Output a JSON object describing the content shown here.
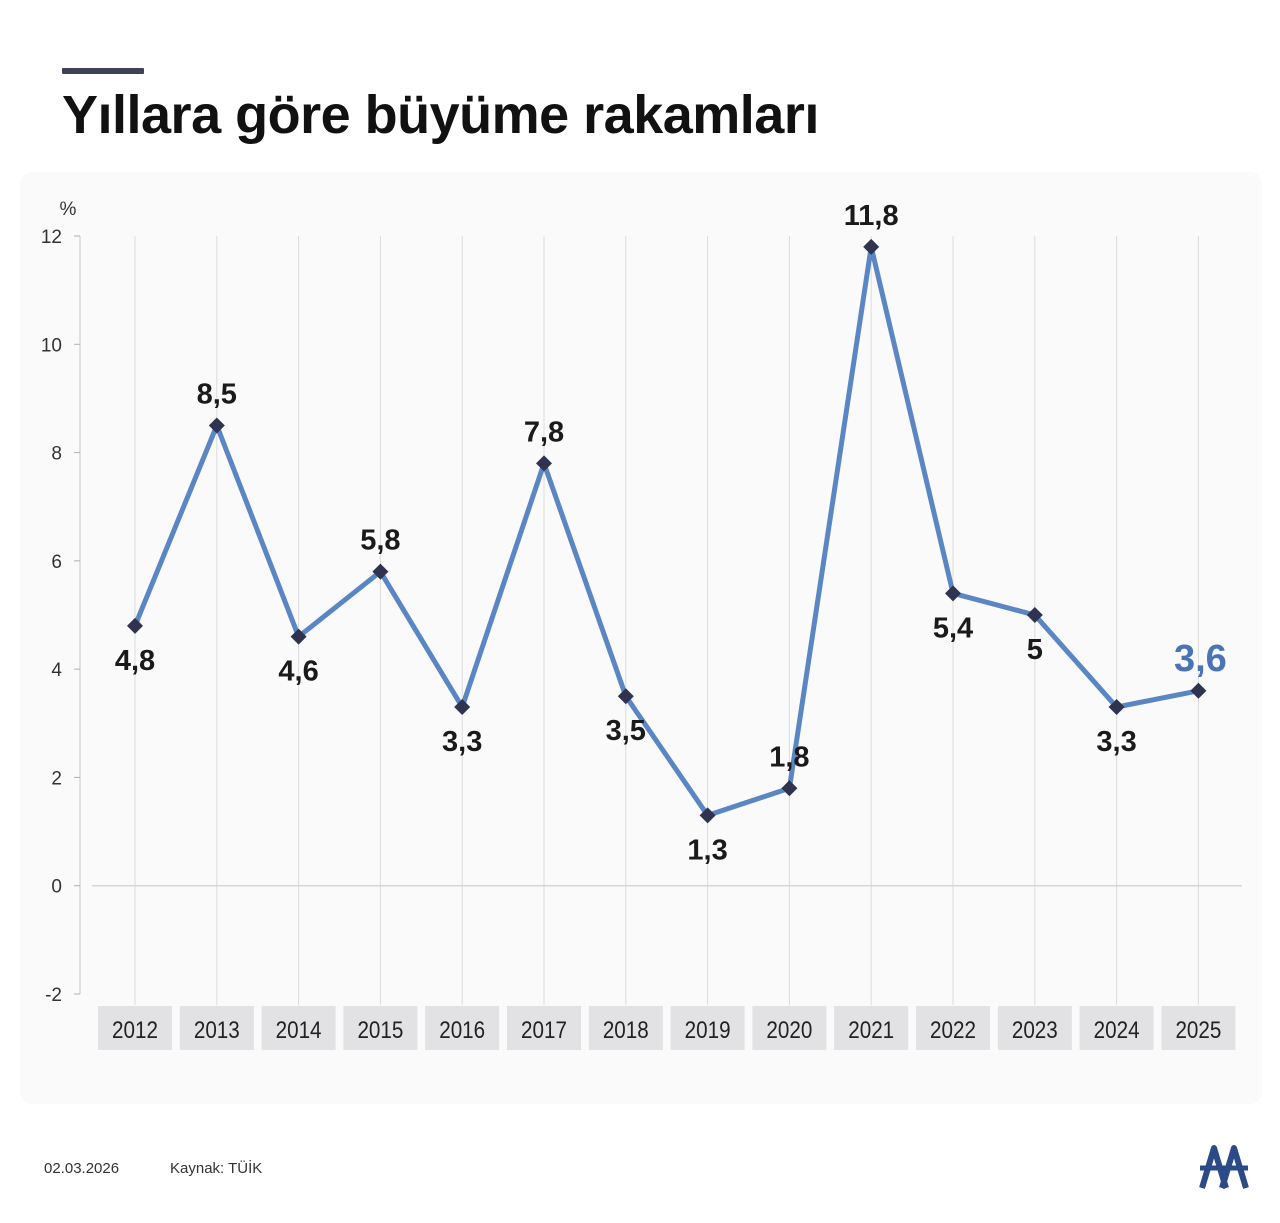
{
  "title": "Yıllara göre büyüme rakamları",
  "footer": {
    "date": "02.03.2026",
    "source": "Kaynak: TÜİK"
  },
  "logo": {
    "name": "AA",
    "icon": "aa-logo-icon",
    "color": "#2b4a87"
  },
  "colors": {
    "line": "#5b86c4",
    "marker": "#2f3350",
    "highlight": "#4a74b5",
    "category_box": "#e2e2e4"
  },
  "chart_data": {
    "type": "line",
    "title": "Yıllara göre büyüme rakamları",
    "ylabel": "%",
    "xlabel": "",
    "categories": [
      "2012",
      "2013",
      "2014",
      "2015",
      "2016",
      "2017",
      "2018",
      "2019",
      "2020",
      "2021",
      "2022",
      "2023",
      "2024",
      "2025"
    ],
    "values": [
      4.8,
      8.5,
      4.6,
      5.8,
      3.3,
      7.8,
      3.5,
      1.3,
      1.8,
      11.8,
      5.4,
      5,
      3.3,
      3.6
    ],
    "value_labels": [
      "4,8",
      "8,5",
      "4,6",
      "5,8",
      "3,3",
      "7,8",
      "3,5",
      "1,3",
      "1,8",
      "11,8",
      "5,4",
      "5",
      "3,3",
      "3,6"
    ],
    "highlight_last": true,
    "ylim": [
      -2,
      12
    ],
    "yticks": [
      12,
      10,
      8,
      6,
      4,
      2,
      0,
      -2
    ],
    "grid": "vertical",
    "legend": "none"
  }
}
